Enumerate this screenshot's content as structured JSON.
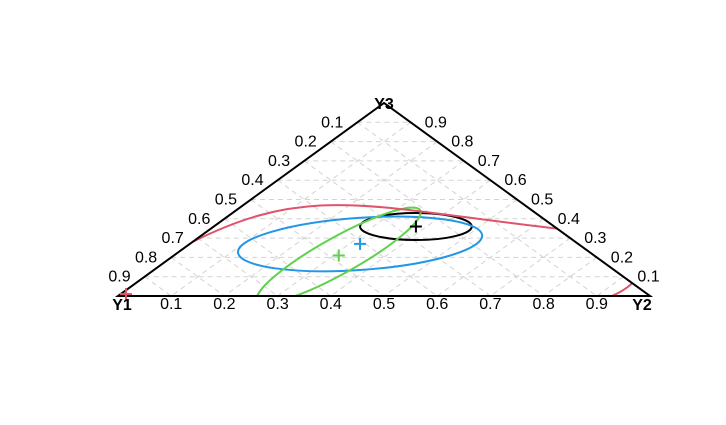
{
  "chart_data": {
    "type": "ternary",
    "vertices": {
      "left": "Y1",
      "right": "Y2",
      "top": "Y3"
    },
    "ticks": [
      "0.1",
      "0.2",
      "0.3",
      "0.4",
      "0.5",
      "0.6",
      "0.7",
      "0.8",
      "0.9"
    ],
    "grid": true,
    "series": [
      {
        "color": "#000000",
        "center": {
          "y1": 0.26,
          "y2": 0.38,
          "y3": 0.36
        },
        "ellipse": {
          "rx": 0.21,
          "ry": 0.14,
          "angle": 0
        }
      },
      {
        "color": "#2297E6",
        "center": {
          "y1": 0.41,
          "y2": 0.32,
          "y3": 0.27
        },
        "ellipse": {
          "rx": 0.46,
          "ry": 0.27,
          "angle": -4
        }
      },
      {
        "color": "#61D04F",
        "center": {
          "y1": 0.48,
          "y2": 0.31,
          "y3": 0.21
        },
        "ellipse": {
          "rx": 0.35,
          "ry": 0.19,
          "angle": -29
        }
      },
      {
        "color": "#DF536B",
        "center": {
          "y1": 0.98,
          "y2": 0.01,
          "y3": 0.01
        },
        "ellipse": null
      }
    ]
  }
}
